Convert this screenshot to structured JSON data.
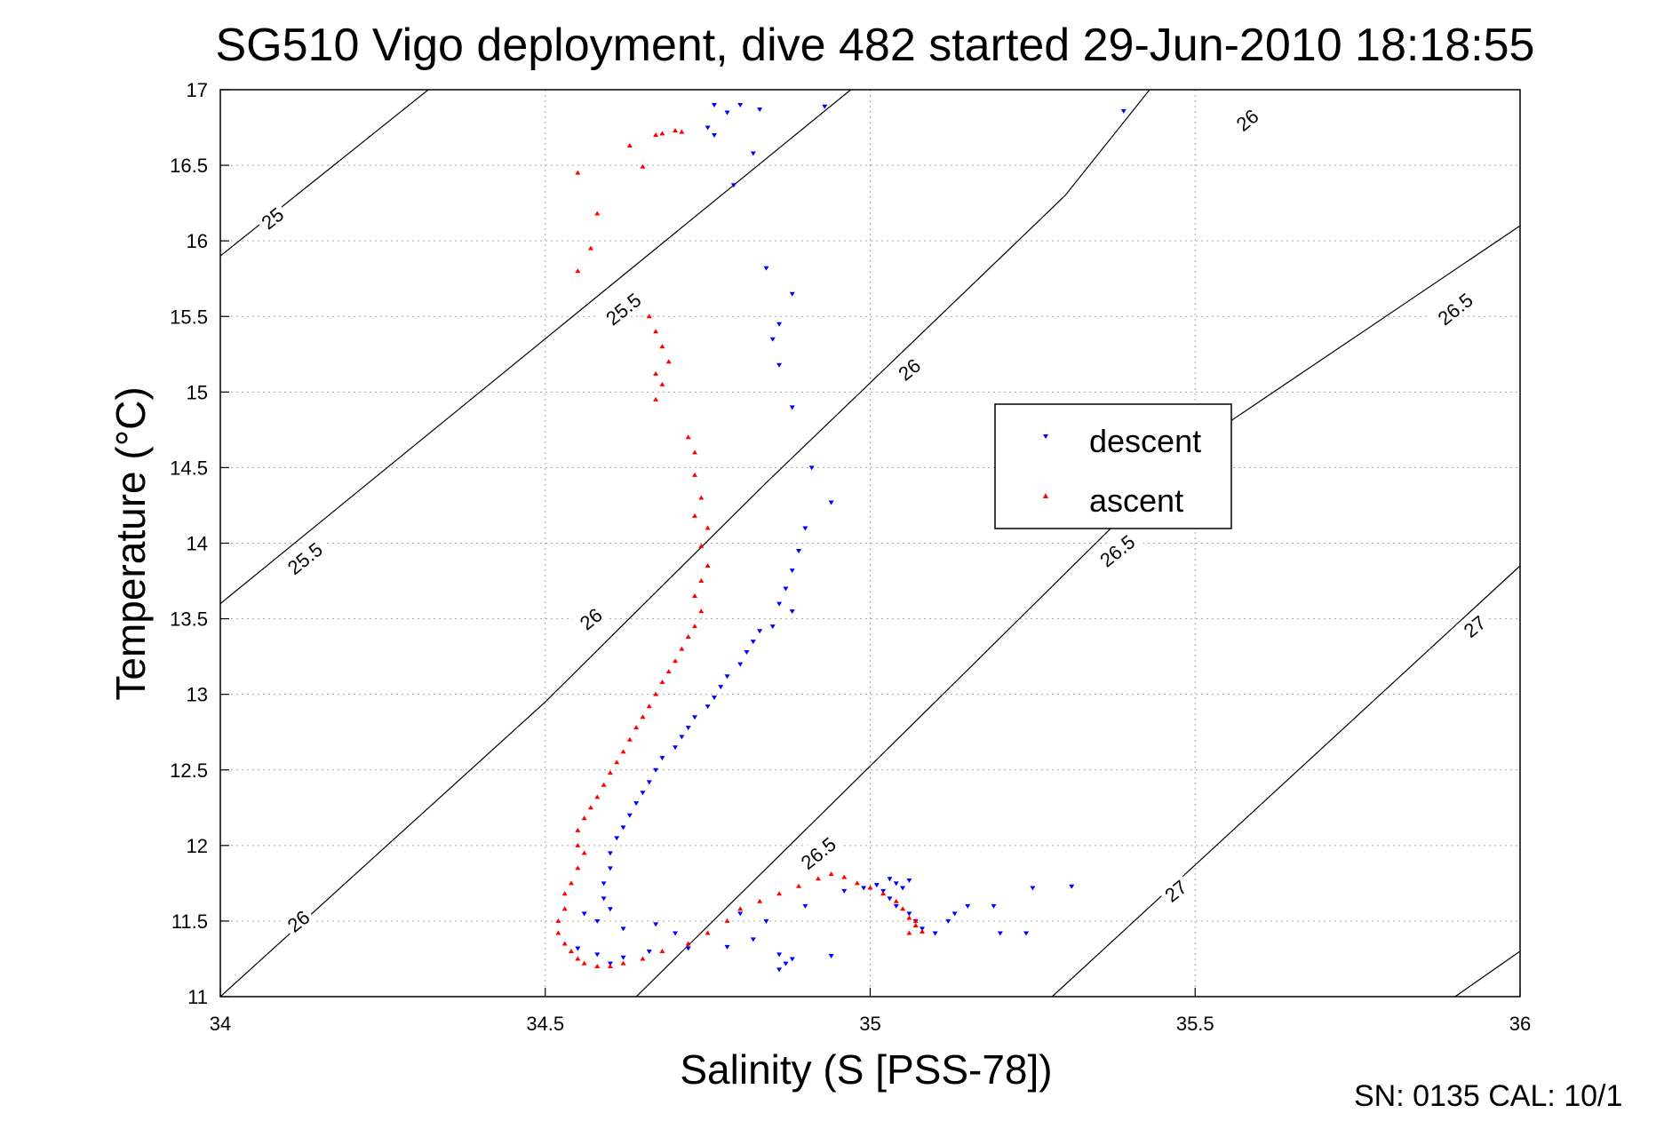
{
  "chart_data": {
    "type": "scatter",
    "title": "SG510 Vigo deployment, dive 482 started 29-Jun-2010 18:18:55",
    "xlabel": "Salinity (S [PSS-78])",
    "ylabel": "Temperature (°C)",
    "xlim": [
      34,
      36
    ],
    "ylim": [
      11,
      17
    ],
    "xticks": [
      "34",
      "34.5",
      "35",
      "35.5",
      "36"
    ],
    "yticks": [
      "11",
      "11.5",
      "12",
      "12.5",
      "13",
      "13.5",
      "14",
      "14.5",
      "15",
      "15.5",
      "16",
      "16.5",
      "17"
    ],
    "grid": true,
    "legend_position": "center-right",
    "footer": "SN: 0135  CAL: 10/1",
    "colors": {
      "descent": "#0000ff",
      "ascent": "#ff0000",
      "contour": "#000000"
    },
    "contours": [
      {
        "points": [
          [
            34.0,
            15.9
          ],
          [
            34.32,
            17.0
          ]
        ],
        "label": "25",
        "label_at": [
          34.08,
          16.15
        ]
      },
      {
        "points": [
          [
            34.0,
            13.6
          ],
          [
            34.97,
            17.0
          ]
        ],
        "label": "25.5",
        "label_at": [
          34.13,
          13.9
        ]
      },
      {
        "points": [
          [
            34.0,
            11.0
          ],
          [
            34.5,
            12.95
          ],
          [
            34.84,
            14.4
          ],
          [
            35.3,
            16.3
          ],
          [
            35.43,
            17.0
          ]
        ],
        "label": "26",
        "label_at": [
          34.12,
          11.5
        ]
      },
      {
        "points": [
          [
            34.64,
            11.0
          ],
          [
            35.1,
            12.95
          ],
          [
            35.5,
            14.65
          ],
          [
            36.0,
            16.1
          ]
        ],
        "label": "26.5",
        "label_at": [
          34.92,
          11.95
        ]
      },
      {
        "points": [
          [
            35.28,
            11.0
          ],
          [
            36.0,
            13.85
          ]
        ],
        "label": "27",
        "label_at": [
          35.47,
          11.7
        ]
      },
      {
        "points": [
          [
            35.9,
            11.0
          ],
          [
            36.0,
            11.3
          ]
        ],
        "label": "",
        "label_at": [
          35.95,
          11.15
        ]
      }
    ],
    "contour_extra_labels": [
      {
        "label": "25.5",
        "label_at": [
          34.62,
          15.55
        ]
      },
      {
        "label": "26",
        "label_at": [
          34.57,
          13.5
        ]
      },
      {
        "label": "26",
        "label_at": [
          35.06,
          15.15
        ]
      },
      {
        "label": "26",
        "label_at": [
          35.58,
          16.8
        ]
      },
      {
        "label": "26.5",
        "label_at": [
          35.38,
          13.95
        ]
      },
      {
        "label": "26.5",
        "label_at": [
          35.9,
          15.55
        ]
      },
      {
        "label": "27",
        "label_at": [
          35.93,
          13.45
        ]
      }
    ],
    "series": [
      {
        "name": "descent",
        "marker": "triangle-down",
        "points": [
          [
            34.76,
            16.9
          ],
          [
            34.78,
            16.85
          ],
          [
            34.8,
            16.9
          ],
          [
            34.83,
            16.87
          ],
          [
            34.93,
            16.89
          ],
          [
            35.39,
            16.86
          ],
          [
            34.75,
            16.75
          ],
          [
            34.76,
            16.7
          ],
          [
            34.82,
            16.58
          ],
          [
            34.79,
            16.37
          ],
          [
            34.84,
            15.82
          ],
          [
            34.88,
            15.65
          ],
          [
            34.86,
            15.45
          ],
          [
            34.85,
            15.35
          ],
          [
            34.86,
            15.18
          ],
          [
            34.88,
            14.9
          ],
          [
            34.91,
            14.5
          ],
          [
            34.94,
            14.27
          ],
          [
            34.9,
            14.1
          ],
          [
            34.89,
            13.95
          ],
          [
            34.88,
            13.82
          ],
          [
            34.87,
            13.7
          ],
          [
            34.86,
            13.6
          ],
          [
            34.88,
            13.55
          ],
          [
            34.85,
            13.45
          ],
          [
            34.83,
            13.42
          ],
          [
            34.82,
            13.35
          ],
          [
            34.81,
            13.28
          ],
          [
            34.8,
            13.2
          ],
          [
            34.78,
            13.12
          ],
          [
            34.77,
            13.05
          ],
          [
            34.76,
            12.98
          ],
          [
            34.75,
            12.92
          ],
          [
            34.73,
            12.85
          ],
          [
            34.72,
            12.78
          ],
          [
            34.71,
            12.72
          ],
          [
            34.7,
            12.65
          ],
          [
            34.68,
            12.58
          ],
          [
            34.67,
            12.5
          ],
          [
            34.66,
            12.42
          ],
          [
            34.65,
            12.35
          ],
          [
            34.64,
            12.28
          ],
          [
            34.63,
            12.2
          ],
          [
            34.62,
            12.12
          ],
          [
            34.61,
            12.05
          ],
          [
            34.6,
            11.95
          ],
          [
            34.6,
            11.85
          ],
          [
            34.59,
            11.75
          ],
          [
            34.59,
            11.65
          ],
          [
            34.6,
            11.58
          ],
          [
            34.56,
            11.55
          ],
          [
            34.58,
            11.5
          ],
          [
            34.62,
            11.45
          ],
          [
            34.67,
            11.48
          ],
          [
            34.7,
            11.42
          ],
          [
            34.55,
            11.32
          ],
          [
            34.58,
            11.28
          ],
          [
            34.6,
            11.22
          ],
          [
            34.62,
            11.26
          ],
          [
            34.66,
            11.3
          ],
          [
            34.72,
            11.32
          ],
          [
            34.78,
            11.33
          ],
          [
            34.82,
            11.38
          ],
          [
            34.86,
            11.28
          ],
          [
            34.87,
            11.22
          ],
          [
            34.88,
            11.25
          ],
          [
            34.86,
            11.18
          ],
          [
            34.8,
            11.55
          ],
          [
            34.84,
            11.5
          ],
          [
            34.9,
            11.6
          ],
          [
            34.94,
            11.27
          ],
          [
            34.96,
            11.7
          ],
          [
            34.99,
            11.72
          ],
          [
            35.01,
            11.74
          ],
          [
            35.02,
            11.7
          ],
          [
            35.03,
            11.78
          ],
          [
            35.04,
            11.75
          ],
          [
            35.05,
            11.72
          ],
          [
            35.06,
            11.77
          ],
          [
            35.03,
            11.65
          ],
          [
            35.04,
            11.6
          ],
          [
            35.06,
            11.55
          ],
          [
            35.07,
            11.5
          ],
          [
            35.08,
            11.45
          ],
          [
            35.1,
            11.42
          ],
          [
            35.12,
            11.5
          ],
          [
            35.13,
            11.55
          ],
          [
            35.15,
            11.6
          ],
          [
            35.19,
            11.6
          ],
          [
            35.25,
            11.72
          ],
          [
            35.31,
            11.73
          ],
          [
            35.2,
            11.42
          ],
          [
            35.24,
            11.42
          ]
        ]
      },
      {
        "name": "ascent",
        "marker": "triangle-up",
        "points": [
          [
            34.71,
            16.72
          ],
          [
            34.7,
            16.73
          ],
          [
            34.68,
            16.71
          ],
          [
            34.67,
            16.7
          ],
          [
            34.63,
            16.63
          ],
          [
            34.65,
            16.49
          ],
          [
            34.55,
            16.45
          ],
          [
            34.58,
            16.18
          ],
          [
            34.57,
            15.95
          ],
          [
            34.55,
            15.8
          ],
          [
            34.66,
            15.5
          ],
          [
            34.67,
            15.4
          ],
          [
            34.68,
            15.3
          ],
          [
            34.69,
            15.2
          ],
          [
            34.67,
            15.12
          ],
          [
            34.68,
            15.05
          ],
          [
            34.67,
            14.95
          ],
          [
            34.72,
            14.7
          ],
          [
            34.73,
            14.6
          ],
          [
            34.73,
            14.45
          ],
          [
            34.74,
            14.3
          ],
          [
            34.73,
            14.18
          ],
          [
            34.75,
            14.1
          ],
          [
            34.74,
            13.98
          ],
          [
            34.75,
            13.85
          ],
          [
            34.74,
            13.75
          ],
          [
            34.73,
            13.65
          ],
          [
            34.74,
            13.55
          ],
          [
            34.73,
            13.45
          ],
          [
            34.72,
            13.38
          ],
          [
            34.71,
            13.3
          ],
          [
            34.7,
            13.22
          ],
          [
            34.69,
            13.15
          ],
          [
            34.68,
            13.08
          ],
          [
            34.67,
            13.0
          ],
          [
            34.66,
            12.92
          ],
          [
            34.65,
            12.85
          ],
          [
            34.64,
            12.78
          ],
          [
            34.63,
            12.7
          ],
          [
            34.62,
            12.62
          ],
          [
            34.61,
            12.55
          ],
          [
            34.6,
            12.48
          ],
          [
            34.59,
            12.4
          ],
          [
            34.58,
            12.32
          ],
          [
            34.57,
            12.25
          ],
          [
            34.56,
            12.18
          ],
          [
            34.55,
            12.1
          ],
          [
            34.55,
            12.0
          ],
          [
            34.56,
            11.95
          ],
          [
            34.55,
            11.85
          ],
          [
            34.54,
            11.75
          ],
          [
            34.53,
            11.68
          ],
          [
            34.53,
            11.58
          ],
          [
            34.52,
            11.5
          ],
          [
            34.52,
            11.42
          ],
          [
            34.53,
            11.35
          ],
          [
            34.54,
            11.3
          ],
          [
            34.55,
            11.25
          ],
          [
            34.56,
            11.22
          ],
          [
            34.58,
            11.2
          ],
          [
            34.6,
            11.2
          ],
          [
            34.62,
            11.22
          ],
          [
            34.65,
            11.25
          ],
          [
            34.68,
            11.3
          ],
          [
            34.72,
            11.35
          ],
          [
            34.75,
            11.42
          ],
          [
            34.78,
            11.5
          ],
          [
            34.8,
            11.58
          ],
          [
            34.83,
            11.63
          ],
          [
            34.86,
            11.68
          ],
          [
            34.89,
            11.73
          ],
          [
            34.92,
            11.78
          ],
          [
            34.94,
            11.81
          ],
          [
            34.96,
            11.79
          ],
          [
            34.98,
            11.75
          ],
          [
            35.0,
            11.72
          ],
          [
            35.02,
            11.68
          ],
          [
            35.04,
            11.63
          ],
          [
            35.05,
            11.58
          ],
          [
            35.06,
            11.52
          ],
          [
            35.07,
            11.47
          ],
          [
            35.08,
            11.43
          ],
          [
            35.06,
            11.42
          ],
          [
            35.07,
            11.5
          ]
        ]
      }
    ]
  }
}
